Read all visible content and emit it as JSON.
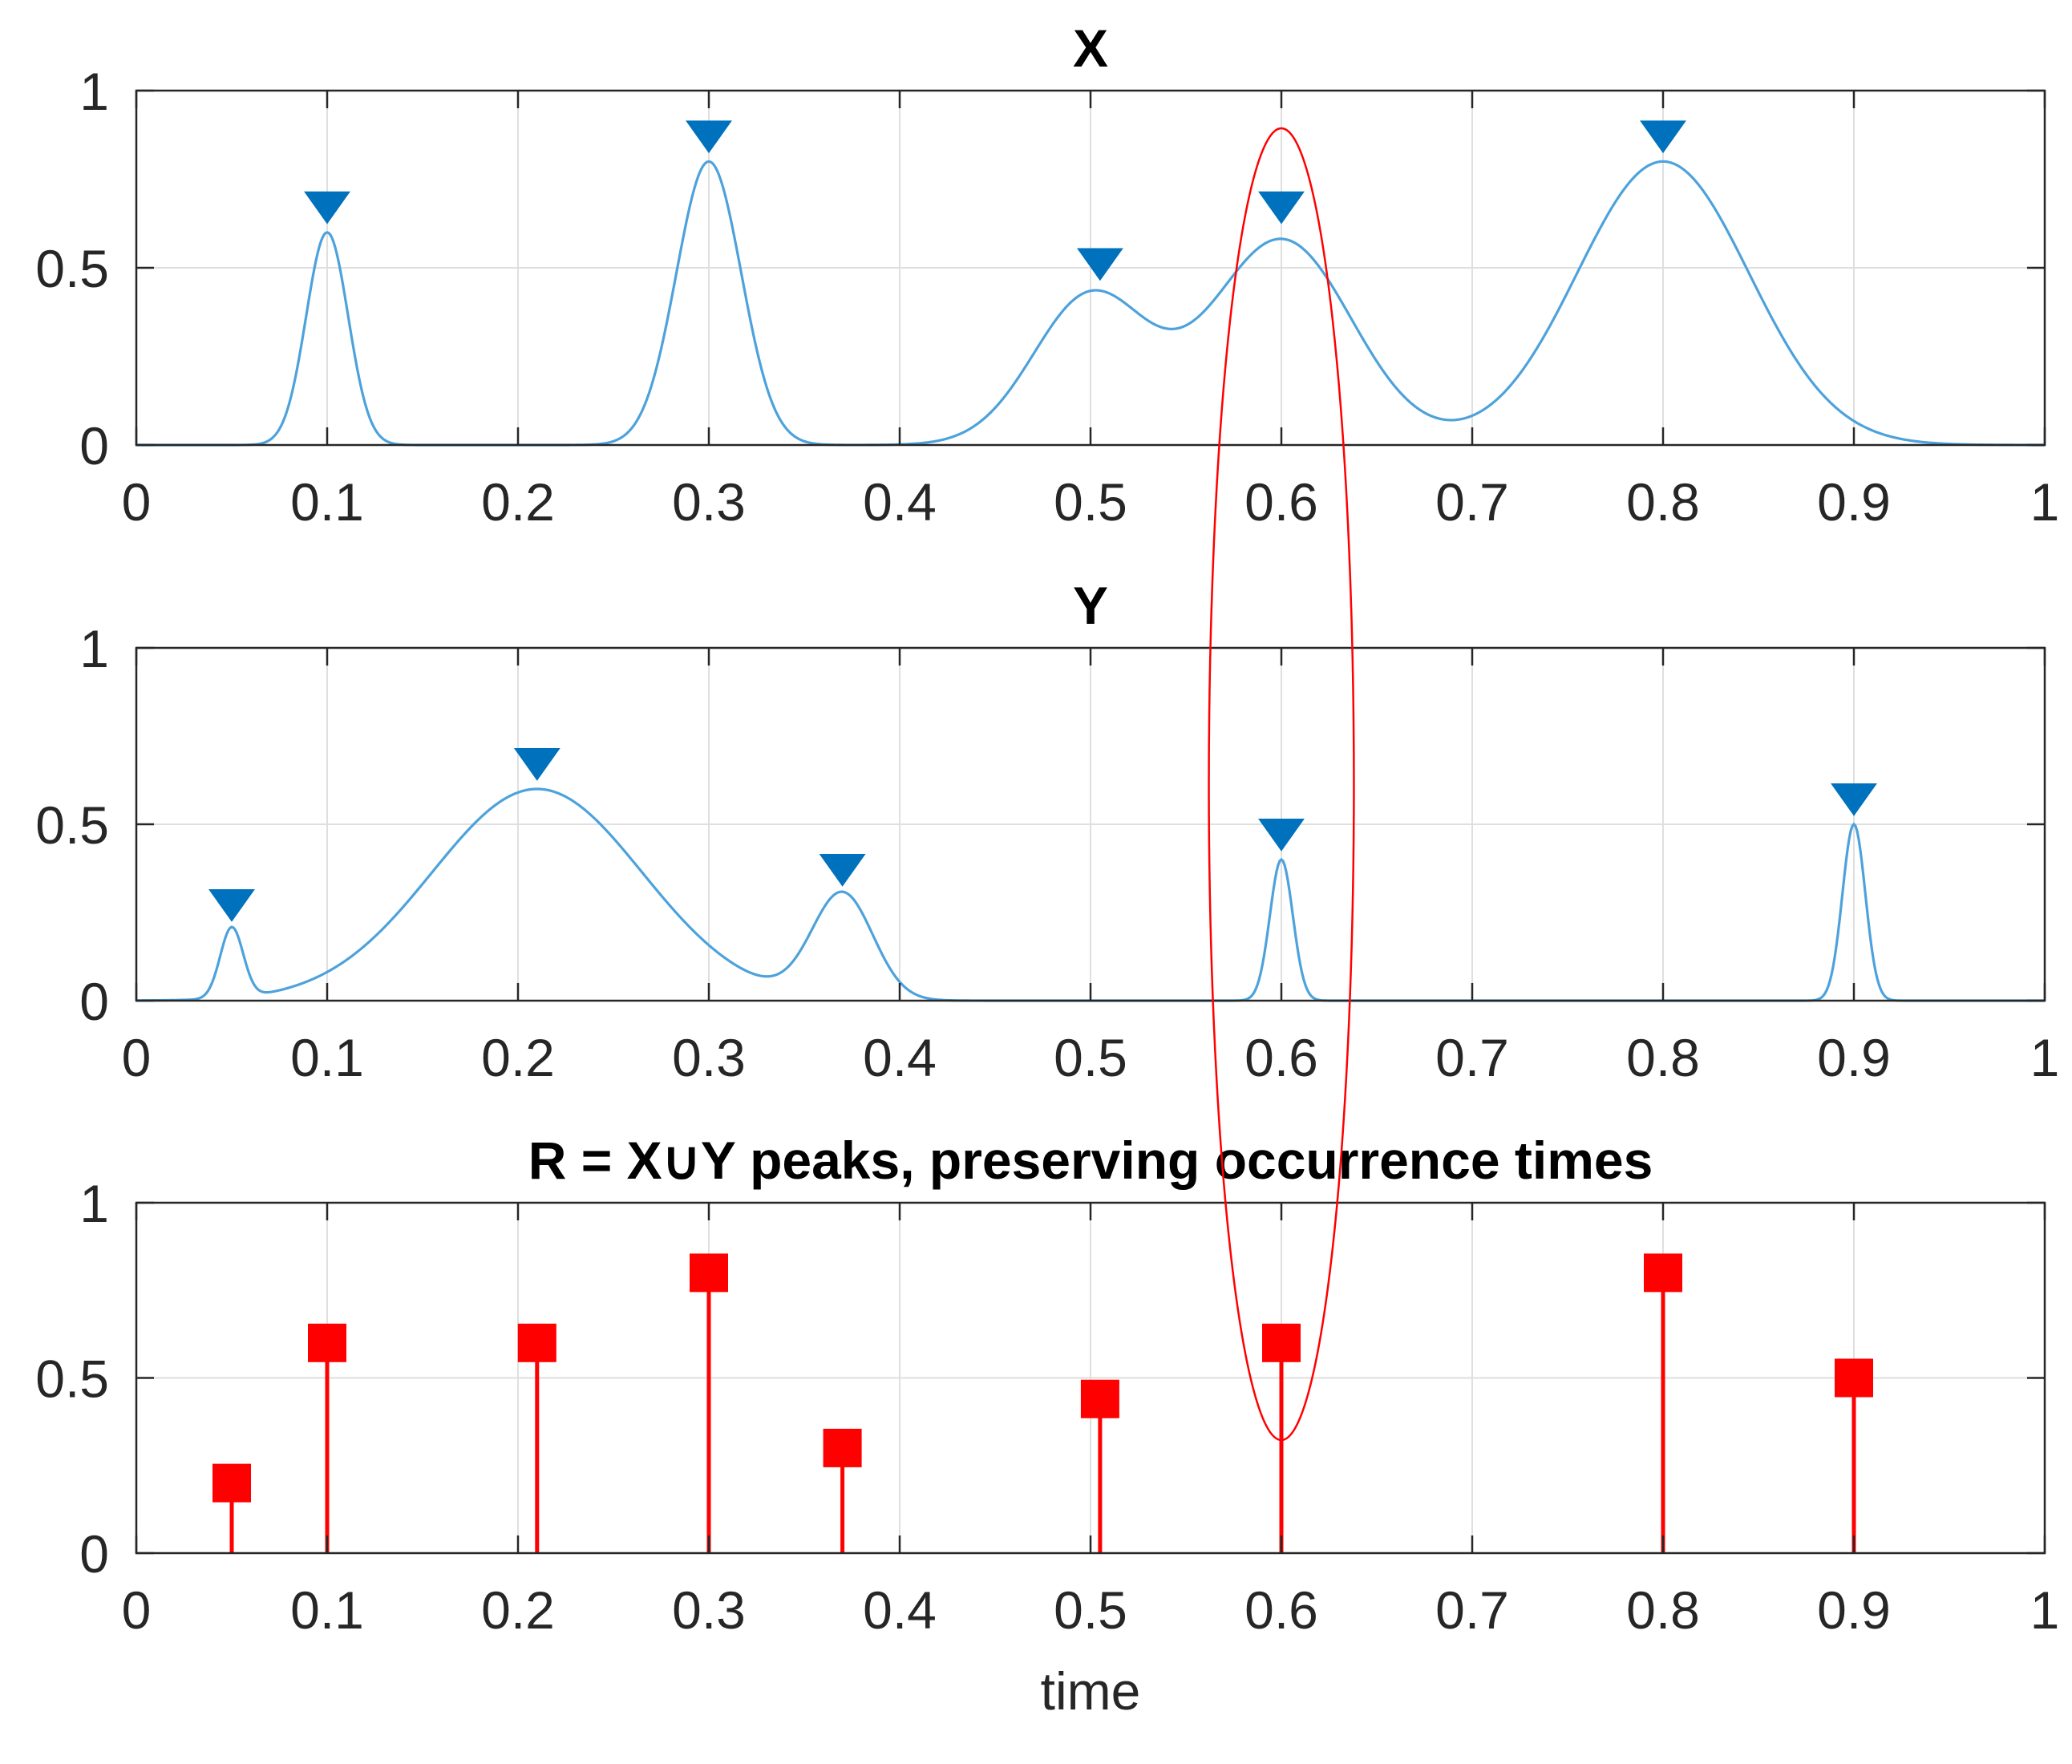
{
  "chart_data": [
    {
      "type": "line",
      "title": "X",
      "xlabel": "",
      "ylabel": "",
      "xlim": [
        0,
        1
      ],
      "ylim": [
        0,
        1
      ],
      "grid": true,
      "xticks": [
        "0",
        "0.1",
        "0.2",
        "0.3",
        "0.4",
        "0.5",
        "0.6",
        "0.7",
        "0.8",
        "0.9",
        "1"
      ],
      "yticks": [
        "0",
        "0.5",
        "1"
      ],
      "series": [
        {
          "name": "X",
          "components": [
            {
              "center": 0.1,
              "amplitude": 0.6,
              "sigma": 0.011
            },
            {
              "center": 0.3,
              "amplitude": 0.8,
              "sigma": 0.017
            },
            {
              "center": 0.5,
              "amplitude": 0.42,
              "sigma": 0.03
            },
            {
              "center": 0.6,
              "amplitude": 0.58,
              "sigma": 0.037
            },
            {
              "center": 0.8,
              "amplitude": 0.8,
              "sigma": 0.045
            }
          ],
          "peaks": [
            {
              "x": 0.1,
              "y": 0.6
            },
            {
              "x": 0.3,
              "y": 0.8
            },
            {
              "x": 0.505,
              "y": 0.44
            },
            {
              "x": 0.6,
              "y": 0.6
            },
            {
              "x": 0.8,
              "y": 0.8
            }
          ]
        }
      ],
      "color": "#0072bd"
    },
    {
      "type": "line",
      "title": "Y",
      "xlabel": "",
      "ylabel": "",
      "xlim": [
        0,
        1
      ],
      "ylim": [
        0,
        1
      ],
      "grid": true,
      "xticks": [
        "0",
        "0.1",
        "0.2",
        "0.3",
        "0.4",
        "0.5",
        "0.6",
        "0.7",
        "0.8",
        "0.9",
        "1"
      ],
      "yticks": [
        "0",
        "0.5",
        "1"
      ],
      "series": [
        {
          "name": "Y",
          "components": [
            {
              "center": 0.05,
              "amplitude": 0.2,
              "sigma": 0.006
            },
            {
              "center": 0.21,
              "amplitude": 0.6,
              "sigma": 0.055
            },
            {
              "center": 0.37,
              "amplitude": 0.3,
              "sigma": 0.016
            },
            {
              "center": 0.6,
              "amplitude": 0.4,
              "sigma": 0.006
            },
            {
              "center": 0.9,
              "amplitude": 0.5,
              "sigma": 0.006
            }
          ],
          "peaks": [
            {
              "x": 0.05,
              "y": 0.2
            },
            {
              "x": 0.21,
              "y": 0.6
            },
            {
              "x": 0.37,
              "y": 0.3
            },
            {
              "x": 0.6,
              "y": 0.4
            },
            {
              "x": 0.9,
              "y": 0.5
            }
          ]
        }
      ],
      "color": "#0072bd"
    },
    {
      "type": "stem",
      "title": "R = X∪Y peaks, preserving occurrence times",
      "xlabel": "time",
      "ylabel": "",
      "xlim": [
        0,
        1
      ],
      "ylim": [
        0,
        1
      ],
      "grid": true,
      "xticks": [
        "0",
        "0.1",
        "0.2",
        "0.3",
        "0.4",
        "0.5",
        "0.6",
        "0.7",
        "0.8",
        "0.9",
        "1"
      ],
      "yticks": [
        "0",
        "0.5",
        "1"
      ],
      "series": [
        {
          "name": "R",
          "x": [
            0.05,
            0.1,
            0.21,
            0.3,
            0.37,
            0.505,
            0.6,
            0.8,
            0.9
          ],
          "y": [
            0.2,
            0.6,
            0.6,
            0.8,
            0.3,
            0.44,
            0.6,
            0.8,
            0.5
          ]
        }
      ],
      "color": "#ff0000"
    }
  ],
  "annotation": {
    "shape": "ellipse",
    "color": "#ff0000",
    "center_time": 0.6,
    "time_halfwidth": 0.038
  }
}
